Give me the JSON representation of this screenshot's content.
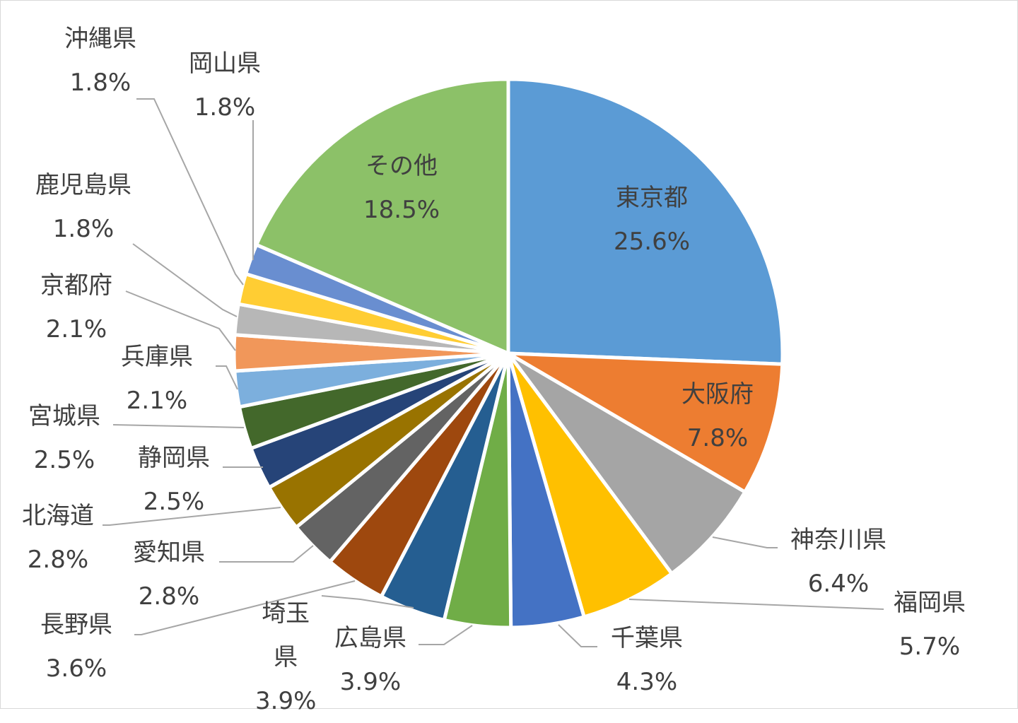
{
  "chart_data": {
    "type": "pie",
    "title": "",
    "slices": [
      {
        "label": "東京都",
        "value": 25.6,
        "display": "25.6%",
        "color": "#5B9BD5",
        "label_position": "inside"
      },
      {
        "label": "大阪府",
        "value": 7.8,
        "display": "7.8%",
        "color": "#ED7D31",
        "label_position": "inside"
      },
      {
        "label": "神奈川県",
        "value": 6.4,
        "display": "6.4%",
        "color": "#A5A5A5",
        "label_position": "outside"
      },
      {
        "label": "福岡県",
        "value": 5.7,
        "display": "5.7%",
        "color": "#FFC000",
        "label_position": "outside"
      },
      {
        "label": "千葉県",
        "value": 4.3,
        "display": "4.3%",
        "color": "#4472C4",
        "label_position": "outside"
      },
      {
        "label": "広島県",
        "value": 3.9,
        "display": "3.9%",
        "color": "#70AD47",
        "label_position": "outside"
      },
      {
        "label": "埼玉\n県",
        "value": 3.9,
        "display": "3.9%",
        "color": "#255E91",
        "label_position": "outside"
      },
      {
        "label": "長野県",
        "value": 3.6,
        "display": "3.6%",
        "color": "#9E480E",
        "label_position": "outside"
      },
      {
        "label": "愛知県",
        "value": 2.8,
        "display": "2.8%",
        "color": "#636363",
        "label_position": "outside"
      },
      {
        "label": "北海道",
        "value": 2.8,
        "display": "2.8%",
        "color": "#997300",
        "label_position": "outside"
      },
      {
        "label": "静岡県",
        "value": 2.5,
        "display": "2.5%",
        "color": "#264478",
        "label_position": "outside"
      },
      {
        "label": "宮城県",
        "value": 2.5,
        "display": "2.5%",
        "color": "#43682B",
        "label_position": "outside"
      },
      {
        "label": "兵庫県",
        "value": 2.1,
        "display": "2.1%",
        "color": "#7CAFDD",
        "label_position": "outside"
      },
      {
        "label": "京都府",
        "value": 2.1,
        "display": "2.1%",
        "color": "#F1975A",
        "label_position": "outside"
      },
      {
        "label": "鹿児島県",
        "value": 1.8,
        "display": "1.8%",
        "color": "#B7B7B7",
        "label_position": "outside"
      },
      {
        "label": "沖縄県",
        "value": 1.8,
        "display": "1.8%",
        "color": "#FFCD33",
        "label_position": "outside"
      },
      {
        "label": "岡山県",
        "value": 1.8,
        "display": "1.8%",
        "color": "#698ED0",
        "label_position": "outside"
      },
      {
        "label": "その他",
        "value": 18.5,
        "display": "18.5%",
        "color": "#8CC168",
        "label_position": "inside"
      }
    ],
    "leader_line_color": "#A6A6A6",
    "label_color": "#404040",
    "legend": "none"
  }
}
